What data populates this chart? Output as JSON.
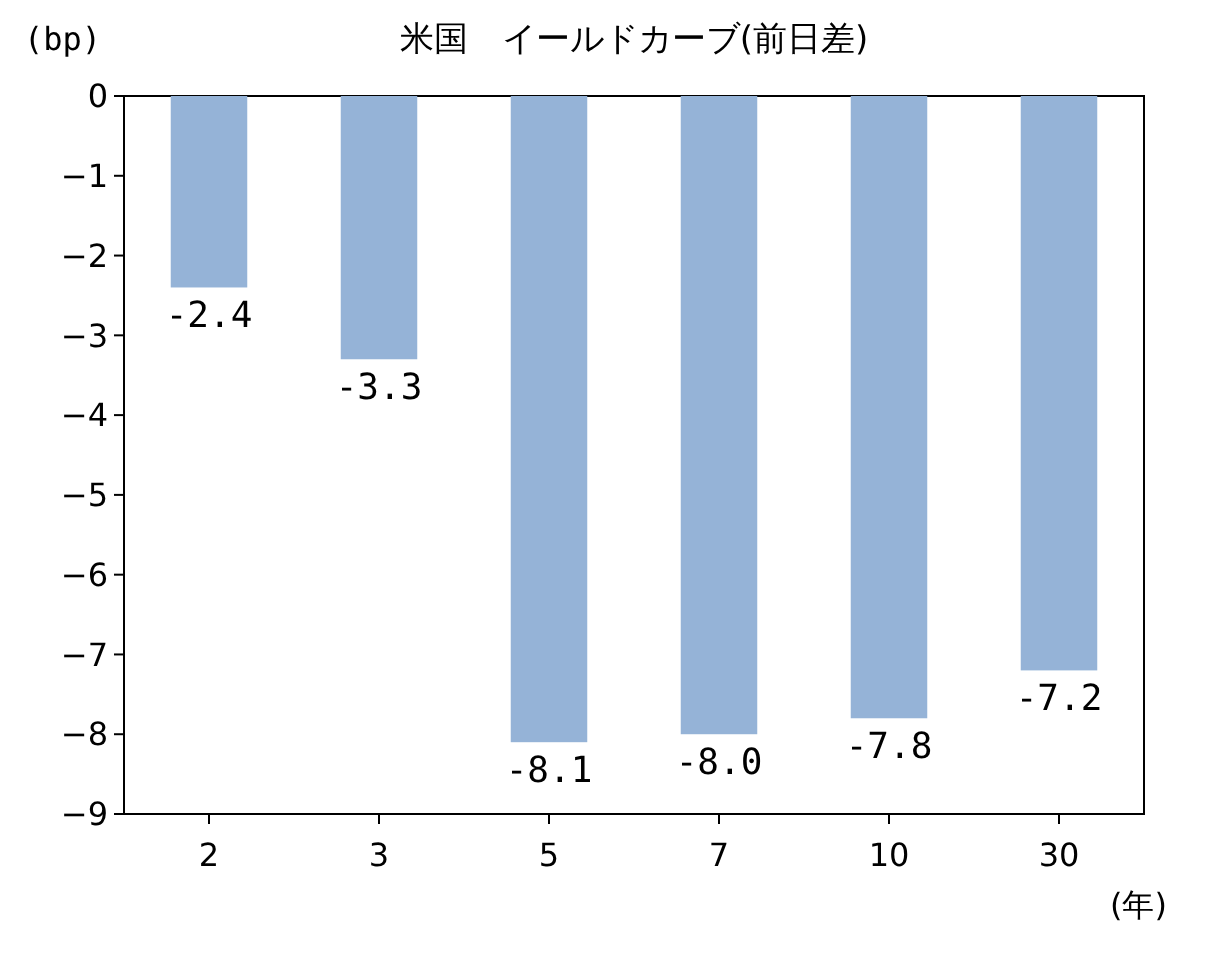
{
  "chart_data": {
    "type": "bar",
    "title": "米国　イールドカーブ(前日差)",
    "ylabel": "(bp)",
    "xlabel": "(年)",
    "categories": [
      "2",
      "3",
      "5",
      "7",
      "10",
      "30"
    ],
    "values": [
      -2.4,
      -3.3,
      -8.1,
      -8.0,
      -7.8,
      -7.2
    ],
    "value_labels": [
      "-2.4",
      "-3.3",
      "-8.1",
      "-8.0",
      "-7.8",
      "-7.2"
    ],
    "color": "#95b3d7",
    "ylim": [
      -9,
      0
    ],
    "yticks": [
      0,
      -1,
      -2,
      -3,
      -4,
      -5,
      -6,
      -7,
      -8,
      -9
    ],
    "grid": false
  }
}
